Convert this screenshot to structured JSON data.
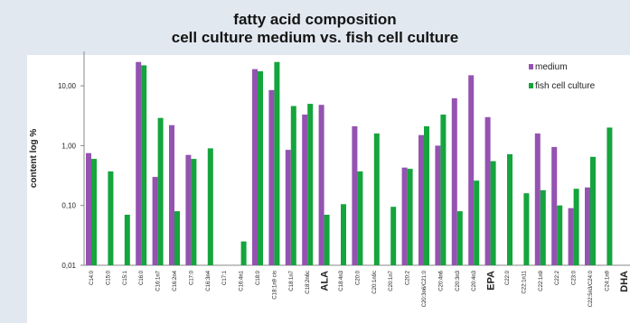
{
  "chart_data": {
    "type": "bar",
    "title": [
      "fatty acid composition",
      "cell culture medium vs. fish cell culture"
    ],
    "ylabel": "content log %",
    "xlabel": "",
    "scale": "log",
    "ylim": [
      0.01,
      30
    ],
    "yticks": [
      {
        "value": 10,
        "label": "10,00"
      },
      {
        "value": 1,
        "label": "1,00"
      },
      {
        "value": 0.1,
        "label": "0,10"
      },
      {
        "value": 0.01,
        "label": "0,01"
      }
    ],
    "grid": false,
    "legend_position": "top-right",
    "categories": [
      {
        "label": "C14:0",
        "emph": false
      },
      {
        "label": "C15:0",
        "emph": false
      },
      {
        "label": "C15:1",
        "emph": false
      },
      {
        "label": "C16:0",
        "emph": false
      },
      {
        "label": "C16:1n7",
        "emph": false
      },
      {
        "label": "C16:2n4",
        "emph": false
      },
      {
        "label": "C17:0",
        "emph": false
      },
      {
        "label": "C16:3n4",
        "emph": false
      },
      {
        "label": "C17:1",
        "emph": false
      },
      {
        "label": "C16:4n1",
        "emph": false
      },
      {
        "label": "C18:0",
        "emph": false
      },
      {
        "label": "C18:1n9 cis",
        "emph": false
      },
      {
        "label": "C18:1n7",
        "emph": false
      },
      {
        "label": "C18:2n6c",
        "emph": false
      },
      {
        "label": "ALA",
        "emph": true
      },
      {
        "label": "C18:4n3",
        "emph": false
      },
      {
        "label": "C20:0",
        "emph": false
      },
      {
        "label": "C20:1n9c",
        "emph": false
      },
      {
        "label": "C20:1n7",
        "emph": false
      },
      {
        "label": "C20:2",
        "emph": false
      },
      {
        "label": "C20:3n6/C21:0",
        "emph": false
      },
      {
        "label": "C20:4n6",
        "emph": false
      },
      {
        "label": "C20:3n3",
        "emph": false
      },
      {
        "label": "C20:4n3",
        "emph": false
      },
      {
        "label": "EPA",
        "emph": true
      },
      {
        "label": "C22:0",
        "emph": false
      },
      {
        "label": "C22:1n11",
        "emph": false
      },
      {
        "label": "C22:1n9",
        "emph": false
      },
      {
        "label": "C22:2",
        "emph": false
      },
      {
        "label": "C23:0",
        "emph": false
      },
      {
        "label": "C22:5n3/C24:0",
        "emph": false
      },
      {
        "label": "C24:1n9",
        "emph": false
      },
      {
        "label": "DHA",
        "emph": true
      }
    ],
    "series": [
      {
        "name": "medium",
        "color": "#9453b0",
        "values": [
          0.75,
          null,
          null,
          25,
          0.3,
          2.2,
          0.7,
          null,
          null,
          null,
          19,
          8.5,
          0.85,
          3.3,
          4.8,
          null,
          2.1,
          null,
          null,
          0.43,
          1.5,
          1.0,
          6.2,
          15,
          3.0,
          null,
          null,
          1.6,
          0.95,
          0.09,
          0.2,
          null,
          null
        ]
      },
      {
        "name": "fish cell culture",
        "color": "#14a53c",
        "values": [
          0.6,
          0.37,
          0.07,
          22,
          2.9,
          0.08,
          0.6,
          0.9,
          null,
          0.025,
          17.5,
          25,
          4.6,
          5.0,
          0.07,
          0.105,
          0.37,
          1.6,
          0.095,
          0.41,
          2.1,
          3.3,
          0.08,
          0.26,
          0.55,
          0.72,
          0.16,
          0.18,
          0.1,
          0.19,
          0.65,
          2.0,
          null
        ]
      }
    ]
  }
}
